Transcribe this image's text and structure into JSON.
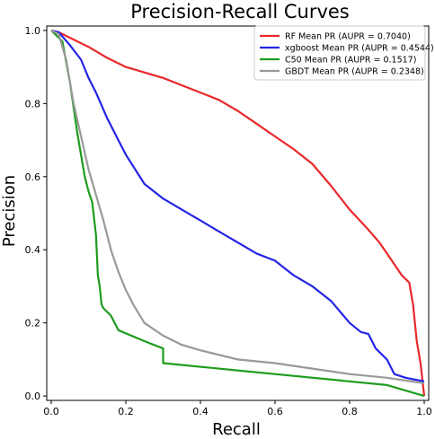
{
  "chart_data": {
    "type": "line",
    "title": "Precision-Recall Curves",
    "xlabel": "Recall",
    "ylabel": "Precision",
    "xlim": [
      0.0,
      1.0
    ],
    "ylim": [
      0.0,
      1.0
    ],
    "xticks": [
      0.0,
      0.2,
      0.4,
      0.6,
      0.8,
      1.0
    ],
    "yticks": [
      0.0,
      0.2,
      0.4,
      0.6,
      0.8,
      1.0
    ],
    "xtick_labels": [
      "0.0",
      "0.2",
      "0.4",
      "0.6",
      "0.8",
      "1.0"
    ],
    "ytick_labels": [
      "0.0",
      "0.2",
      "0.4",
      "0.6",
      "0.8",
      "1.0"
    ],
    "grid": false,
    "legend_position": "top-right",
    "series": [
      {
        "name": "RF Mean PR (AUPR = 0.7040)",
        "color": "#e8282b",
        "points": [
          [
            0.0,
            1.0
          ],
          [
            0.02,
            0.995
          ],
          [
            0.05,
            0.98
          ],
          [
            0.1,
            0.955
          ],
          [
            0.15,
            0.925
          ],
          [
            0.2,
            0.9
          ],
          [
            0.25,
            0.885
          ],
          [
            0.3,
            0.87
          ],
          [
            0.35,
            0.85
          ],
          [
            0.4,
            0.83
          ],
          [
            0.45,
            0.81
          ],
          [
            0.5,
            0.78
          ],
          [
            0.55,
            0.745
          ],
          [
            0.6,
            0.71
          ],
          [
            0.65,
            0.675
          ],
          [
            0.7,
            0.635
          ],
          [
            0.75,
            0.575
          ],
          [
            0.8,
            0.51
          ],
          [
            0.85,
            0.455
          ],
          [
            0.88,
            0.42
          ],
          [
            0.9,
            0.39
          ],
          [
            0.92,
            0.36
          ],
          [
            0.94,
            0.33
          ],
          [
            0.96,
            0.31
          ],
          [
            0.97,
            0.25
          ],
          [
            0.98,
            0.15
          ],
          [
            0.99,
            0.09
          ],
          [
            1.0,
            0.0
          ]
        ]
      },
      {
        "name": "xgboost Mean PR (AUPR = 0.4544)",
        "color": "#2424e6",
        "points": [
          [
            0.0,
            1.0
          ],
          [
            0.02,
            0.995
          ],
          [
            0.05,
            0.96
          ],
          [
            0.08,
            0.92
          ],
          [
            0.1,
            0.87
          ],
          [
            0.12,
            0.83
          ],
          [
            0.15,
            0.76
          ],
          [
            0.18,
            0.7
          ],
          [
            0.2,
            0.66
          ],
          [
            0.25,
            0.58
          ],
          [
            0.3,
            0.54
          ],
          [
            0.35,
            0.51
          ],
          [
            0.4,
            0.48
          ],
          [
            0.45,
            0.45
          ],
          [
            0.5,
            0.42
          ],
          [
            0.55,
            0.39
          ],
          [
            0.6,
            0.37
          ],
          [
            0.65,
            0.33
          ],
          [
            0.7,
            0.3
          ],
          [
            0.75,
            0.26
          ],
          [
            0.8,
            0.2
          ],
          [
            0.83,
            0.175
          ],
          [
            0.85,
            0.17
          ],
          [
            0.87,
            0.13
          ],
          [
            0.9,
            0.1
          ],
          [
            0.92,
            0.06
          ],
          [
            0.95,
            0.05
          ],
          [
            1.0,
            0.04
          ]
        ]
      },
      {
        "name": "C50 Mean PR (AUPR = 0.1517)",
        "color": "#1e9c1e",
        "points": [
          [
            0.0,
            1.0
          ],
          [
            0.03,
            0.97
          ],
          [
            0.05,
            0.86
          ],
          [
            0.07,
            0.72
          ],
          [
            0.09,
            0.6
          ],
          [
            0.1,
            0.56
          ],
          [
            0.11,
            0.53
          ],
          [
            0.12,
            0.44
          ],
          [
            0.125,
            0.33
          ],
          [
            0.13,
            0.3
          ],
          [
            0.135,
            0.25
          ],
          [
            0.14,
            0.24
          ],
          [
            0.16,
            0.22
          ],
          [
            0.18,
            0.18
          ],
          [
            0.25,
            0.15
          ],
          [
            0.3,
            0.13
          ],
          [
            0.3,
            0.09
          ],
          [
            0.6,
            0.06
          ],
          [
            0.9,
            0.03
          ],
          [
            1.0,
            0.0
          ]
        ]
      },
      {
        "name": "GBDT Mean PR (AUPR = 0.2348)",
        "color": "#999999",
        "points": [
          [
            0.0,
            1.0
          ],
          [
            0.02,
            0.99
          ],
          [
            0.04,
            0.92
          ],
          [
            0.06,
            0.8
          ],
          [
            0.08,
            0.71
          ],
          [
            0.1,
            0.62
          ],
          [
            0.12,
            0.55
          ],
          [
            0.14,
            0.48
          ],
          [
            0.16,
            0.4
          ],
          [
            0.18,
            0.34
          ],
          [
            0.2,
            0.29
          ],
          [
            0.22,
            0.25
          ],
          [
            0.25,
            0.2
          ],
          [
            0.3,
            0.165
          ],
          [
            0.35,
            0.14
          ],
          [
            0.4,
            0.125
          ],
          [
            0.5,
            0.1
          ],
          [
            0.6,
            0.09
          ],
          [
            0.7,
            0.075
          ],
          [
            0.8,
            0.06
          ],
          [
            0.9,
            0.05
          ],
          [
            1.0,
            0.035
          ]
        ]
      }
    ]
  }
}
